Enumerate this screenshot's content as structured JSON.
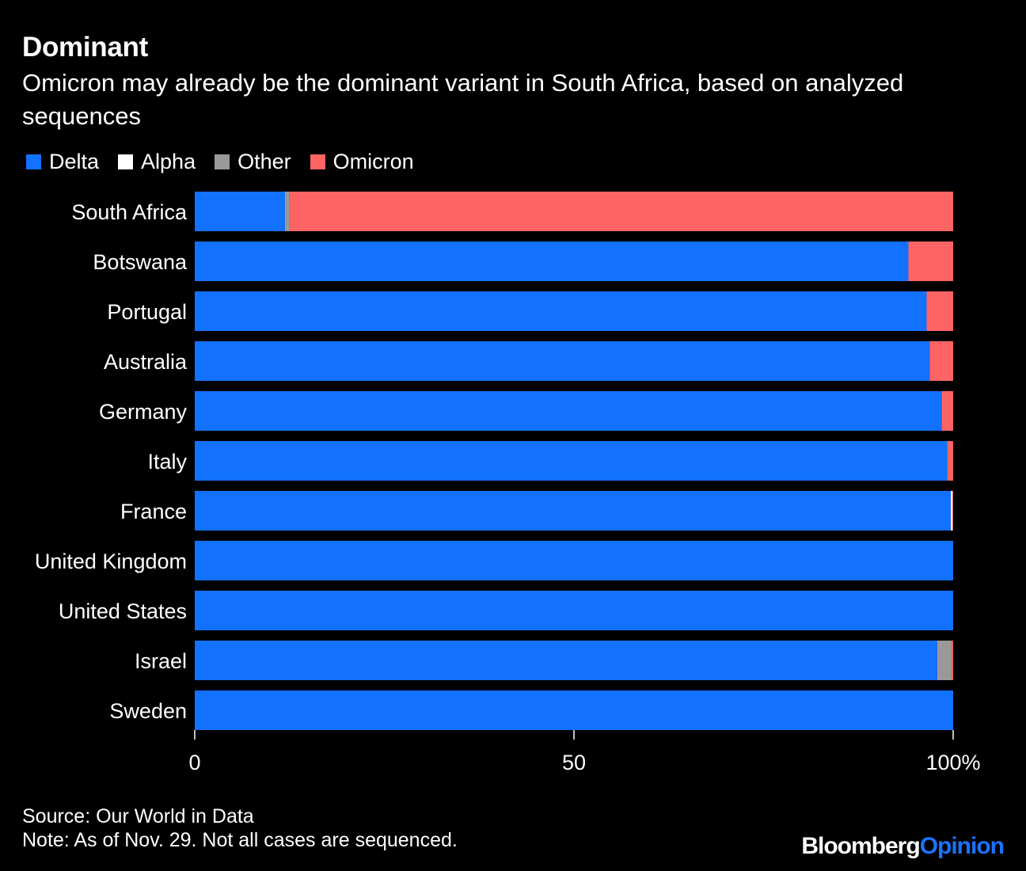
{
  "header": {
    "title": "Dominant",
    "subtitle": "Omicron may already be the dominant variant in South Africa, based on analyzed sequences"
  },
  "footer": {
    "source": "Source: Our World in Data",
    "note": "Note: As of Nov. 29. Not all cases are sequenced.",
    "brand_part1": "Bloomberg",
    "brand_part2": "Opinion"
  },
  "colors": {
    "Delta": "#1371ff",
    "Alpha": "#ffffff",
    "Other": "#999999",
    "Omicron": "#ff6464",
    "background": "#000000"
  },
  "chart_data": {
    "type": "bar",
    "orientation": "horizontal",
    "stacked": true,
    "title": "Dominant",
    "subtitle": "Omicron may already be the dominant variant in South Africa, based on analyzed sequences",
    "categories": [
      "South Africa",
      "Botswana",
      "Portugal",
      "Australia",
      "Germany",
      "Italy",
      "France",
      "United Kingdom",
      "United States",
      "Israel",
      "Sweden"
    ],
    "series": [
      {
        "name": "Delta",
        "values": [
          11.9,
          94.1,
          96.5,
          96.9,
          98.5,
          99.2,
          99.7,
          100,
          100,
          97.9,
          100
        ]
      },
      {
        "name": "Alpha",
        "values": [
          0,
          0,
          0,
          0,
          0,
          0,
          0.2,
          0,
          0,
          0,
          0
        ]
      },
      {
        "name": "Other",
        "values": [
          0.6,
          0,
          0,
          0,
          0,
          0.1,
          0,
          0,
          0,
          1.9,
          0
        ]
      },
      {
        "name": "Omicron",
        "values": [
          87.5,
          5.9,
          3.5,
          3.1,
          1.5,
          0.7,
          0.1,
          0,
          0,
          0.2,
          0
        ]
      }
    ],
    "xlim": [
      0,
      100
    ],
    "xticks": [
      "0",
      "50",
      "100%"
    ],
    "xtick_values": [
      0,
      50,
      100
    ],
    "legend_position": "top-left",
    "grid": false
  }
}
